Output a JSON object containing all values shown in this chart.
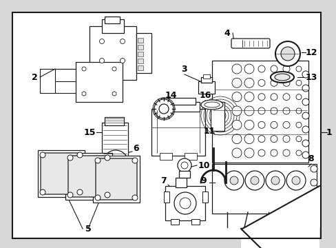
{
  "bg_color": "#d8d8d8",
  "border_bg": "#ffffff",
  "line_color": "#1a1a1a",
  "label_color": "#000000",
  "inner_bg": "#e8e8e8"
}
